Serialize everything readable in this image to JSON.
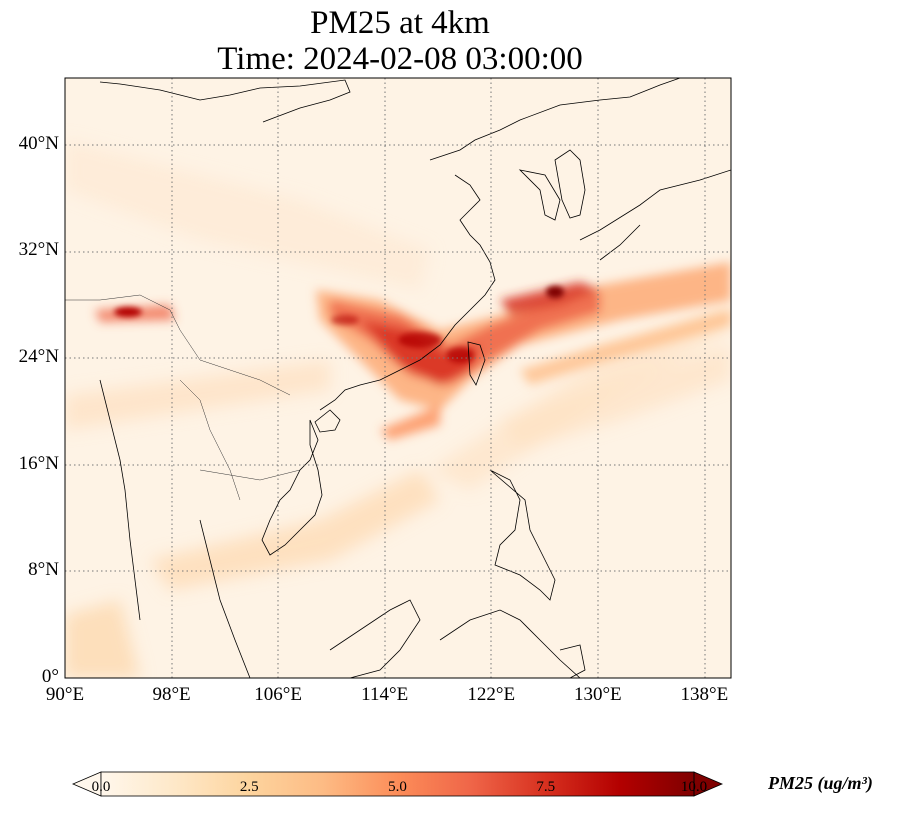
{
  "title": {
    "line1": "PM25 at 4km",
    "line2": "Time: 2024-02-08 03:00:00"
  },
  "map": {
    "region": "East Asia / South China Sea / Western Pacific",
    "extent": {
      "lon": [
        90,
        140
      ],
      "lat": [
        0,
        45
      ]
    },
    "gridlines": "dotted",
    "xticks": [
      {
        "value": 90,
        "label": "90°E"
      },
      {
        "value": 98,
        "label": "98°E"
      },
      {
        "value": 106,
        "label": "106°E"
      },
      {
        "value": 114,
        "label": "114°E"
      },
      {
        "value": 122,
        "label": "122°E"
      },
      {
        "value": 130,
        "label": "130°E"
      },
      {
        "value": 138,
        "label": "138°E"
      }
    ],
    "yticks": [
      {
        "value": 0,
        "label": "0°"
      },
      {
        "value": 8,
        "label": "8°N"
      },
      {
        "value": 16,
        "label": "16°N"
      },
      {
        "value": 24,
        "label": "24°N"
      },
      {
        "value": 32,
        "label": "32°N"
      },
      {
        "value": 40,
        "label": "40°N"
      }
    ]
  },
  "colorbar": {
    "label": "PM25 (ug/m³)",
    "colormap": "OrRd",
    "colors": [
      "#fff7ec",
      "#fee8c8",
      "#fdd49e",
      "#fdbb84",
      "#fc8d59",
      "#ef6548",
      "#d7301f",
      "#b30000",
      "#7f0000"
    ],
    "range": [
      0,
      10
    ],
    "extend": "both",
    "ticks": [
      {
        "value": 0,
        "label": "0.0"
      },
      {
        "value": 2.5,
        "label": "2.5"
      },
      {
        "value": 5,
        "label": "5.0"
      },
      {
        "value": 7.5,
        "label": "7.5"
      },
      {
        "value": 10,
        "label": "10.0"
      }
    ]
  }
}
